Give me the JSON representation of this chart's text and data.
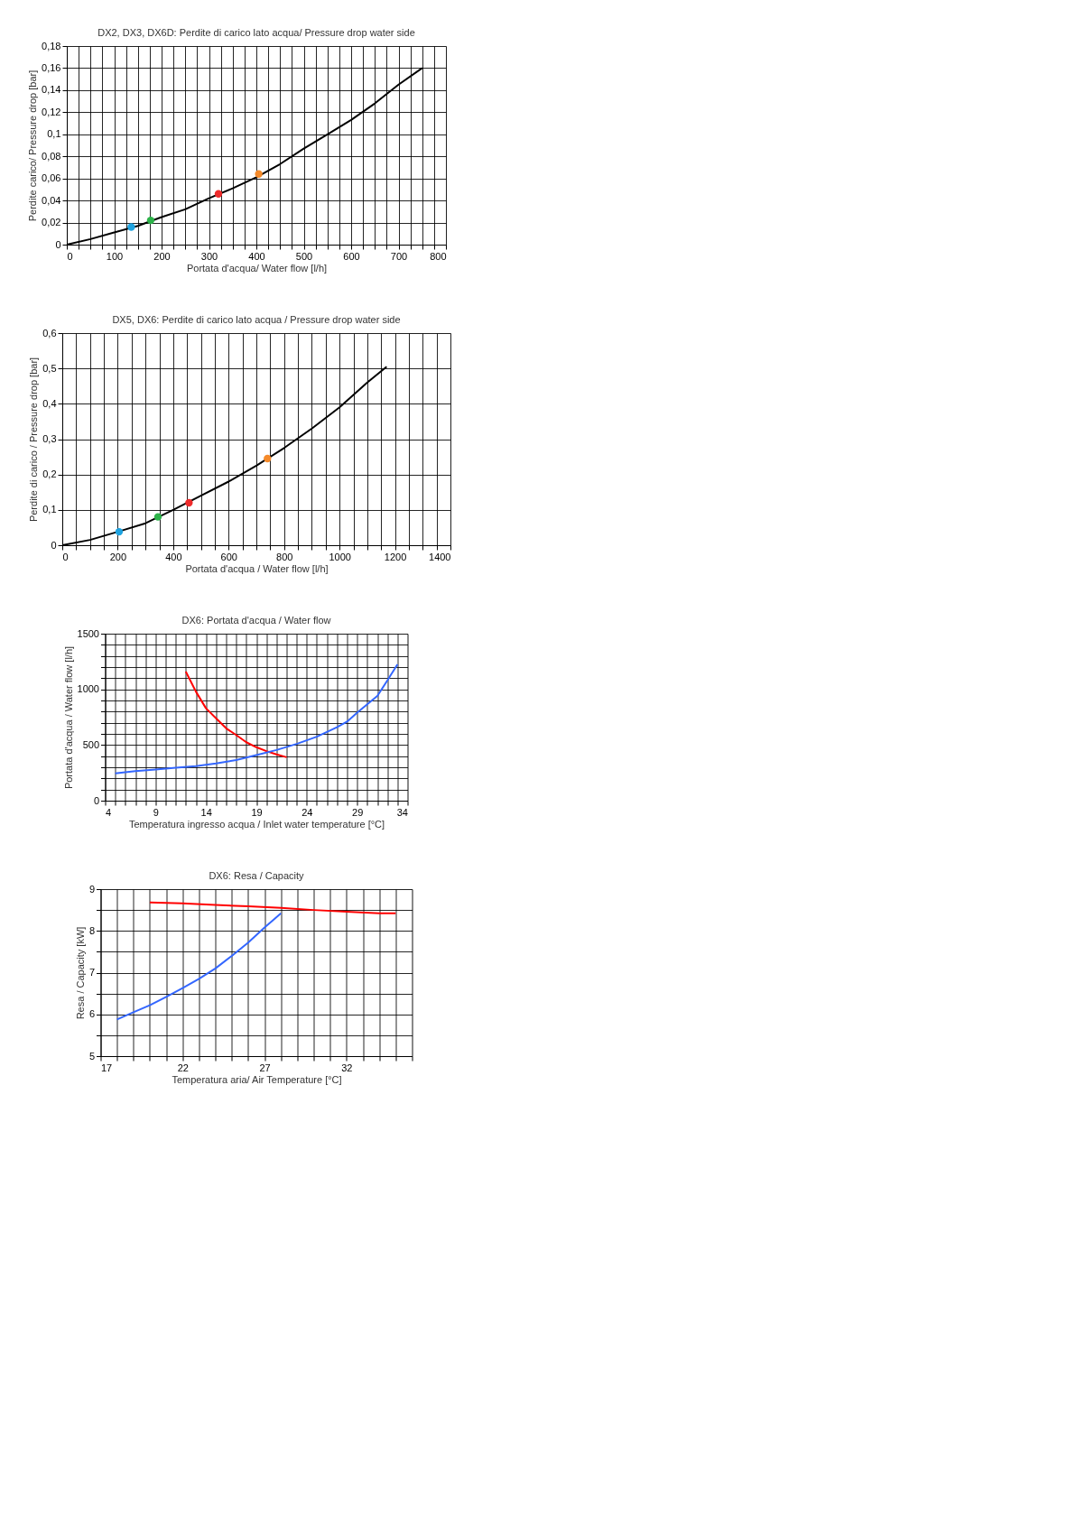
{
  "chart_data": [
    {
      "type": "line",
      "title": "DX2, DX3, DX6D: Perdite di carico lato acqua/ Pressure drop water side",
      "xlabel": "Portata d'acqua/ Water flow [l/h]",
      "ylabel": "Perdite carico/ Pressure drop [bar]",
      "grid": true,
      "xlim": [
        0,
        800
      ],
      "ylim": [
        0,
        0.18
      ],
      "xticks": [
        0,
        {
          "value": 25,
          "label": null
        },
        {
          "value": 50,
          "label": null
        },
        {
          "value": 75,
          "label": null
        },
        100,
        {
          "value": 125,
          "label": null
        },
        {
          "value": 150,
          "label": null
        },
        {
          "value": 175,
          "label": null
        },
        200,
        {
          "value": 225,
          "label": null
        },
        {
          "value": 250,
          "label": null
        },
        {
          "value": 275,
          "label": null
        },
        300,
        {
          "value": 325,
          "label": null
        },
        {
          "value": 350,
          "label": null
        },
        {
          "value": 375,
          "label": null
        },
        400,
        {
          "value": 425,
          "label": null
        },
        {
          "value": 450,
          "label": null
        },
        {
          "value": 475,
          "label": null
        },
        500,
        {
          "value": 525,
          "label": null
        },
        {
          "value": 550,
          "label": null
        },
        {
          "value": 575,
          "label": null
        },
        600,
        {
          "value": 625,
          "label": null
        },
        {
          "value": 650,
          "label": null
        },
        {
          "value": 675,
          "label": null
        },
        700,
        {
          "value": 725,
          "label": null
        },
        {
          "value": 750,
          "label": null
        },
        {
          "value": 775,
          "label": null
        },
        800
      ],
      "yticks": [
        0,
        {
          "value": 0.02,
          "label": "0,02"
        },
        {
          "value": 0.04,
          "label": "0,04"
        },
        {
          "value": 0.06,
          "label": "0,06"
        },
        {
          "value": 0.08,
          "label": "0,08"
        },
        {
          "value": 0.1,
          "label": "0,1"
        },
        {
          "value": 0.12,
          "label": "0,12"
        },
        {
          "value": 0.14,
          "label": "0,14"
        },
        {
          "value": 0.16,
          "label": "0,16"
        },
        {
          "value": 0.18,
          "label": "0,18"
        }
      ],
      "series": [
        {
          "type": "line",
          "color": "#000000",
          "x": [
            0,
            50,
            100,
            150,
            200,
            250,
            300,
            350,
            400,
            450,
            500,
            550,
            600,
            650,
            700,
            750
          ],
          "values": [
            0,
            0.005,
            0.011,
            0.017,
            0.025,
            0.032,
            0.042,
            0.051,
            0.061,
            0.073,
            0.087,
            0.1,
            0.113,
            0.128,
            0.145,
            0.16
          ]
        },
        {
          "type": "scatter",
          "color": "#1fa3e0",
          "x": [
            136
          ],
          "values": [
            0.016
          ]
        },
        {
          "type": "scatter",
          "color": "#2db34a",
          "x": [
            177
          ],
          "values": [
            0.022
          ]
        },
        {
          "type": "scatter",
          "color": "#ee2b2b",
          "x": [
            320
          ],
          "values": [
            0.046
          ]
        },
        {
          "type": "scatter",
          "color": "#f58a2a",
          "x": [
            405
          ],
          "values": [
            0.064
          ]
        }
      ]
    },
    {
      "type": "line",
      "title": "DX5, DX6: Perdite di carico lato acqua / Pressure drop water side",
      "xlabel": "Portata d'acqua / Water flow [l/h]",
      "ylabel": "Perdite di carico / Pressure drop [bar]",
      "grid": true,
      "xlim": [
        0,
        1400
      ],
      "ylim": [
        0,
        0.6
      ],
      "xticks": [
        0,
        {
          "value": 50,
          "label": null
        },
        {
          "value": 100,
          "label": null
        },
        {
          "value": 150,
          "label": null
        },
        200,
        {
          "value": 250,
          "label": null
        },
        {
          "value": 300,
          "label": null
        },
        {
          "value": 350,
          "label": null
        },
        400,
        {
          "value": 450,
          "label": null
        },
        {
          "value": 500,
          "label": null
        },
        {
          "value": 550,
          "label": null
        },
        600,
        {
          "value": 650,
          "label": null
        },
        {
          "value": 700,
          "label": null
        },
        {
          "value": 750,
          "label": null
        },
        800,
        {
          "value": 850,
          "label": null
        },
        {
          "value": 900,
          "label": null
        },
        {
          "value": 950,
          "label": null
        },
        1000,
        {
          "value": 1050,
          "label": null
        },
        {
          "value": 1100,
          "label": null
        },
        {
          "value": 1150,
          "label": null
        },
        1200,
        {
          "value": 1250,
          "label": null
        },
        {
          "value": 1300,
          "label": null
        },
        {
          "value": 1350,
          "label": null
        },
        1400
      ],
      "yticks": [
        0,
        {
          "value": 0.1,
          "label": "0,1"
        },
        {
          "value": 0.2,
          "label": "0,2"
        },
        {
          "value": 0.3,
          "label": "0,3"
        },
        {
          "value": 0.4,
          "label": "0,4"
        },
        {
          "value": 0.5,
          "label": "0,5"
        },
        {
          "value": 0.6,
          "label": "0,6"
        }
      ],
      "series": [
        {
          "type": "line",
          "color": "#000000",
          "x": [
            0,
            100,
            200,
            300,
            400,
            500,
            600,
            700,
            800,
            900,
            1000,
            1100,
            1170
          ],
          "values": [
            0,
            0.015,
            0.038,
            0.062,
            0.1,
            0.14,
            0.18,
            0.225,
            0.275,
            0.33,
            0.39,
            0.46,
            0.505
          ]
        },
        {
          "type": "scatter",
          "color": "#1fa3e0",
          "x": [
            205
          ],
          "values": [
            0.038
          ]
        },
        {
          "type": "scatter",
          "color": "#2db34a",
          "x": [
            345
          ],
          "values": [
            0.08
          ]
        },
        {
          "type": "scatter",
          "color": "#ee2b2b",
          "x": [
            457
          ],
          "values": [
            0.12
          ]
        },
        {
          "type": "scatter",
          "color": "#f58a2a",
          "x": [
            740
          ],
          "values": [
            0.245
          ]
        }
      ]
    },
    {
      "type": "line",
      "title": "DX6: Portata d'acqua / Water flow",
      "xlabel": "Temperatura ingresso acqua / Inlet water temperature [°C]",
      "ylabel": "Portata d'acqua / Water flow [l/h]",
      "grid": true,
      "xlim": [
        4,
        34
      ],
      "ylim": [
        0,
        1500
      ],
      "xticks": [
        4,
        {
          "value": 5,
          "label": null
        },
        {
          "value": 6,
          "label": null
        },
        {
          "value": 7,
          "label": null
        },
        {
          "value": 8,
          "label": null
        },
        9,
        {
          "value": 10,
          "label": null
        },
        {
          "value": 11,
          "label": null
        },
        {
          "value": 12,
          "label": null
        },
        {
          "value": 13,
          "label": null
        },
        14,
        {
          "value": 15,
          "label": null
        },
        {
          "value": 16,
          "label": null
        },
        {
          "value": 17,
          "label": null
        },
        {
          "value": 18,
          "label": null
        },
        19,
        {
          "value": 20,
          "label": null
        },
        {
          "value": 21,
          "label": null
        },
        {
          "value": 22,
          "label": null
        },
        {
          "value": 23,
          "label": null
        },
        24,
        {
          "value": 25,
          "label": null
        },
        {
          "value": 26,
          "label": null
        },
        {
          "value": 27,
          "label": null
        },
        {
          "value": 28,
          "label": null
        },
        29,
        {
          "value": 30,
          "label": null
        },
        {
          "value": 31,
          "label": null
        },
        {
          "value": 32,
          "label": null
        },
        {
          "value": 33,
          "label": null
        },
        34
      ],
      "yticks": [
        0,
        {
          "value": 100,
          "label": null
        },
        {
          "value": 200,
          "label": null
        },
        {
          "value": 300,
          "label": null
        },
        {
          "value": 400,
          "label": null
        },
        500,
        {
          "value": 600,
          "label": null
        },
        {
          "value": 700,
          "label": null
        },
        {
          "value": 800,
          "label": null
        },
        {
          "value": 900,
          "label": null
        },
        1000,
        {
          "value": 1100,
          "label": null
        },
        {
          "value": 1200,
          "label": null
        },
        {
          "value": 1300,
          "label": null
        },
        {
          "value": 1400,
          "label": null
        },
        1500
      ],
      "series": [
        {
          "type": "line",
          "color": "#ff0000",
          "x": [
            12,
            13,
            14,
            15,
            16,
            17,
            18,
            19,
            20,
            21,
            22
          ],
          "values": [
            1160,
            980,
            830,
            740,
            650,
            590,
            525,
            480,
            445,
            415,
            390
          ]
        },
        {
          "type": "line",
          "color": "#3366ff",
          "x": [
            5,
            7,
            9,
            11,
            13,
            15,
            17,
            19,
            21,
            23,
            25,
            27,
            28,
            29,
            31,
            32,
            33
          ],
          "values": [
            245,
            265,
            280,
            295,
            310,
            335,
            365,
            410,
            455,
            510,
            575,
            660,
            710,
            790,
            940,
            1080,
            1225
          ]
        }
      ]
    },
    {
      "type": "line",
      "title": "DX6: Resa / Capacity",
      "xlabel": "Temperatura aria/ Air Temperature [°C]",
      "ylabel": "Resa / Capacity [kW]",
      "grid": true,
      "xlim": [
        17,
        36
      ],
      "ylim": [
        5,
        9
      ],
      "xticks": [
        17,
        {
          "value": 18,
          "label": null
        },
        {
          "value": 19,
          "label": null
        },
        {
          "value": 20,
          "label": null
        },
        {
          "value": 21,
          "label": null
        },
        22,
        {
          "value": 23,
          "label": null
        },
        {
          "value": 24,
          "label": null
        },
        {
          "value": 25,
          "label": null
        },
        {
          "value": 26,
          "label": null
        },
        27,
        {
          "value": 28,
          "label": null
        },
        {
          "value": 29,
          "label": null
        },
        {
          "value": 30,
          "label": null
        },
        {
          "value": 31,
          "label": null
        },
        32,
        {
          "value": 33,
          "label": null
        },
        {
          "value": 34,
          "label": null
        },
        {
          "value": 35,
          "label": null
        },
        {
          "value": 36,
          "label": null
        }
      ],
      "yticks": [
        5,
        {
          "value": 5.5,
          "label": null
        },
        6,
        {
          "value": 6.5,
          "label": null
        },
        7,
        {
          "value": 7.5,
          "label": null
        },
        8,
        {
          "value": 8.5,
          "label": null
        },
        9
      ],
      "series": [
        {
          "type": "line",
          "color": "#ff0000",
          "x": [
            20,
            22,
            24,
            26,
            28,
            30,
            32,
            34,
            35
          ],
          "values": [
            8.68,
            8.66,
            8.62,
            8.59,
            8.55,
            8.5,
            8.46,
            8.42,
            8.42
          ]
        },
        {
          "type": "line",
          "color": "#3366ff",
          "x": [
            18,
            19,
            20,
            21,
            22,
            23,
            24,
            25,
            26,
            27,
            28
          ],
          "values": [
            5.88,
            6.05,
            6.22,
            6.42,
            6.63,
            6.85,
            7.1,
            7.4,
            7.72,
            8.08,
            8.42
          ]
        }
      ]
    }
  ]
}
